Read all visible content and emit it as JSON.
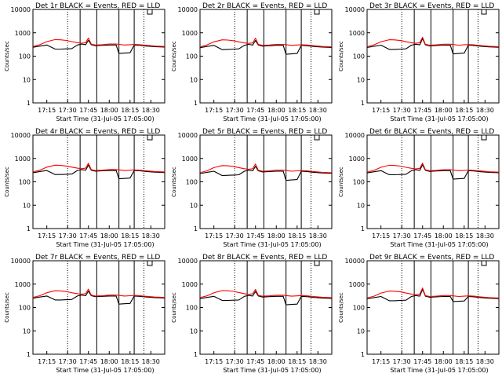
{
  "colors": {
    "events": "#000000",
    "lld": "#ff0000",
    "axes": "#000000",
    "background": "#ffffff"
  },
  "shared": {
    "y_axis_label": "Counts/sec",
    "x_axis_label": "Start Time (31-Jul-05 17:05:00)",
    "x_ticks": [
      10,
      25,
      40,
      55,
      70,
      85
    ],
    "x_tick_labels": [
      "17:15",
      "17:30",
      "17:45",
      "18:00",
      "18:15",
      "18:30"
    ],
    "y_ticks": [
      1,
      10,
      100,
      1000,
      10000
    ],
    "y_tick_labels": [
      "1",
      "10",
      "100",
      "1000",
      "10000"
    ],
    "xlim": [
      0,
      95
    ],
    "ylim": [
      1,
      10000
    ],
    "y_scale": "log",
    "dotted_lines": [
      25,
      80
    ],
    "solid_lines": [
      34,
      46,
      62,
      73
    ]
  },
  "chart_data": [
    {
      "type": "line",
      "title": "Det 1r BLACK = Events, RED = LLD",
      "x": [
        0,
        5,
        10,
        16,
        20,
        24,
        28,
        32,
        35,
        38,
        40,
        42,
        45,
        50,
        55,
        60,
        62,
        66,
        70,
        73,
        77,
        82,
        88,
        95
      ],
      "series": [
        {
          "name": "Events",
          "color": "#000000",
          "values": [
            240,
            270,
            300,
            200,
            200,
            205,
            210,
            300,
            330,
            310,
            480,
            310,
            280,
            290,
            300,
            300,
            130,
            135,
            140,
            300,
            290,
            270,
            255,
            245
          ]
        },
        {
          "name": "LLD",
          "color": "#ff0000",
          "values": [
            260,
            310,
            420,
            510,
            500,
            470,
            420,
            380,
            360,
            380,
            600,
            330,
            300,
            310,
            330,
            330,
            320,
            300,
            310,
            320,
            310,
            290,
            270,
            260
          ]
        }
      ]
    },
    {
      "type": "line",
      "title": "Det 2r BLACK = Events, RED = LLD",
      "x": [
        0,
        5,
        10,
        16,
        20,
        24,
        28,
        32,
        35,
        38,
        40,
        42,
        45,
        50,
        55,
        60,
        62,
        66,
        70,
        73,
        77,
        82,
        88,
        95
      ],
      "series": [
        {
          "name": "Events",
          "color": "#000000",
          "values": [
            230,
            260,
            290,
            190,
            195,
            200,
            205,
            290,
            320,
            300,
            470,
            300,
            270,
            280,
            290,
            290,
            120,
            125,
            130,
            290,
            280,
            260,
            245,
            235
          ]
        },
        {
          "name": "LLD",
          "color": "#ff0000",
          "values": [
            250,
            300,
            410,
            500,
            490,
            460,
            410,
            370,
            350,
            370,
            590,
            320,
            290,
            300,
            320,
            320,
            310,
            290,
            300,
            310,
            300,
            280,
            260,
            250
          ]
        }
      ]
    },
    {
      "type": "line",
      "title": "Det 3r BLACK = Events, RED = LLD",
      "x": [
        0,
        5,
        10,
        16,
        20,
        24,
        28,
        32,
        35,
        38,
        40,
        42,
        45,
        50,
        55,
        60,
        62,
        66,
        70,
        73,
        77,
        82,
        88,
        95
      ],
      "series": [
        {
          "name": "Events",
          "color": "#000000",
          "values": [
            235,
            265,
            295,
            195,
            195,
            200,
            205,
            295,
            325,
            305,
            560,
            305,
            275,
            285,
            295,
            295,
            125,
            130,
            135,
            295,
            285,
            265,
            250,
            240
          ]
        },
        {
          "name": "LLD",
          "color": "#ff0000",
          "values": [
            255,
            305,
            415,
            505,
            495,
            465,
            415,
            375,
            355,
            375,
            640,
            325,
            295,
            305,
            325,
            325,
            315,
            295,
            305,
            315,
            305,
            285,
            265,
            255
          ]
        }
      ]
    },
    {
      "type": "line",
      "title": "Det 4r BLACK = Events, RED = LLD",
      "x": [
        0,
        5,
        10,
        16,
        20,
        24,
        28,
        32,
        35,
        38,
        40,
        42,
        45,
        50,
        55,
        60,
        62,
        66,
        70,
        73,
        77,
        82,
        88,
        95
      ],
      "series": [
        {
          "name": "Events",
          "color": "#000000",
          "values": [
            245,
            275,
            305,
            205,
            205,
            210,
            215,
            305,
            335,
            315,
            520,
            315,
            285,
            295,
            305,
            305,
            135,
            140,
            145,
            305,
            295,
            275,
            260,
            250
          ]
        },
        {
          "name": "LLD",
          "color": "#ff0000",
          "values": [
            265,
            315,
            425,
            515,
            505,
            475,
            425,
            385,
            365,
            385,
            620,
            335,
            305,
            315,
            335,
            335,
            325,
            305,
            315,
            325,
            315,
            295,
            275,
            265
          ]
        }
      ]
    },
    {
      "type": "line",
      "title": "Det 5r BLACK = Events, RED = LLD",
      "x": [
        0,
        5,
        10,
        16,
        20,
        24,
        28,
        32,
        35,
        38,
        40,
        42,
        45,
        50,
        55,
        60,
        62,
        66,
        70,
        73,
        77,
        82,
        88,
        95
      ],
      "series": [
        {
          "name": "Events",
          "color": "#000000",
          "values": [
            225,
            255,
            285,
            185,
            190,
            195,
            200,
            285,
            315,
            295,
            460,
            295,
            265,
            275,
            285,
            285,
            115,
            120,
            125,
            285,
            275,
            255,
            240,
            230
          ]
        },
        {
          "name": "LLD",
          "color": "#ff0000",
          "values": [
            245,
            295,
            405,
            495,
            485,
            455,
            405,
            365,
            345,
            365,
            580,
            315,
            285,
            295,
            315,
            315,
            305,
            285,
            295,
            305,
            295,
            275,
            255,
            245
          ]
        }
      ]
    },
    {
      "type": "line",
      "title": "Det 6r BLACK = Events, RED = LLD",
      "x": [
        0,
        5,
        10,
        16,
        20,
        24,
        28,
        32,
        35,
        38,
        40,
        42,
        45,
        50,
        55,
        60,
        62,
        66,
        70,
        73,
        77,
        82,
        88,
        95
      ],
      "series": [
        {
          "name": "Events",
          "color": "#000000",
          "values": [
            240,
            270,
            300,
            200,
            200,
            205,
            210,
            300,
            330,
            310,
            540,
            310,
            280,
            290,
            300,
            300,
            130,
            135,
            140,
            300,
            290,
            270,
            255,
            245
          ]
        },
        {
          "name": "LLD",
          "color": "#ff0000",
          "values": [
            260,
            310,
            420,
            510,
            500,
            470,
            420,
            380,
            360,
            380,
            630,
            330,
            300,
            310,
            330,
            330,
            320,
            300,
            310,
            320,
            310,
            290,
            270,
            260
          ]
        }
      ]
    },
    {
      "type": "line",
      "title": "Det 7r BLACK = Events, RED = LLD",
      "x": [
        0,
        5,
        10,
        16,
        20,
        24,
        28,
        32,
        35,
        38,
        40,
        42,
        45,
        50,
        55,
        60,
        62,
        66,
        70,
        73,
        77,
        82,
        88,
        95
      ],
      "series": [
        {
          "name": "Events",
          "color": "#000000",
          "values": [
            250,
            280,
            310,
            210,
            210,
            215,
            220,
            310,
            340,
            320,
            500,
            320,
            290,
            300,
            310,
            310,
            140,
            145,
            150,
            310,
            300,
            280,
            265,
            255
          ]
        },
        {
          "name": "LLD",
          "color": "#ff0000",
          "values": [
            270,
            320,
            430,
            520,
            510,
            480,
            430,
            390,
            370,
            390,
            610,
            340,
            310,
            320,
            340,
            340,
            330,
            310,
            320,
            330,
            320,
            300,
            280,
            270
          ]
        }
      ]
    },
    {
      "type": "line",
      "title": "Det 8r BLACK = Events, RED = LLD",
      "x": [
        0,
        5,
        10,
        16,
        20,
        24,
        28,
        32,
        35,
        38,
        40,
        42,
        45,
        50,
        55,
        60,
        62,
        66,
        70,
        73,
        77,
        82,
        88,
        95
      ],
      "series": [
        {
          "name": "Events",
          "color": "#000000",
          "values": [
            240,
            270,
            300,
            200,
            200,
            205,
            210,
            300,
            330,
            310,
            490,
            310,
            280,
            290,
            300,
            300,
            130,
            135,
            140,
            300,
            290,
            270,
            255,
            245
          ]
        },
        {
          "name": "LLD",
          "color": "#ff0000",
          "values": [
            265,
            315,
            430,
            530,
            520,
            490,
            440,
            390,
            365,
            385,
            600,
            335,
            305,
            315,
            335,
            335,
            325,
            305,
            315,
            325,
            315,
            295,
            275,
            265
          ]
        }
      ]
    },
    {
      "type": "line",
      "title": "Det 9r BLACK = Events, RED = LLD",
      "x": [
        0,
        5,
        10,
        16,
        20,
        24,
        28,
        32,
        35,
        38,
        40,
        42,
        45,
        50,
        55,
        60,
        62,
        66,
        70,
        73,
        77,
        82,
        88,
        95
      ],
      "series": [
        {
          "name": "Events",
          "color": "#000000",
          "values": [
            235,
            265,
            295,
            195,
            195,
            200,
            205,
            295,
            325,
            305,
            600,
            305,
            275,
            285,
            295,
            295,
            180,
            185,
            190,
            295,
            285,
            265,
            250,
            240
          ]
        },
        {
          "name": "LLD",
          "color": "#ff0000",
          "values": [
            255,
            305,
            415,
            505,
            495,
            465,
            415,
            375,
            355,
            375,
            680,
            325,
            295,
            305,
            325,
            325,
            315,
            295,
            305,
            315,
            305,
            285,
            265,
            255
          ]
        }
      ]
    }
  ]
}
